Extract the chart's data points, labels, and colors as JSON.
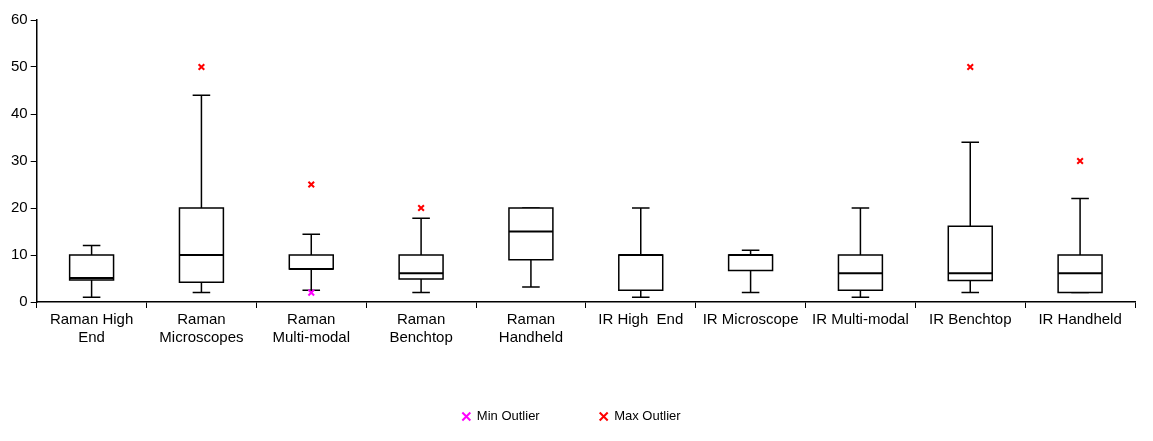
{
  "chart_data": {
    "type": "box",
    "categories": [
      "Raman High End",
      "Raman Microscopes",
      "Raman Multi-modal",
      "Raman Benchtop",
      "Raman Handheld",
      "IR High  End",
      "IR Microscope",
      "IR Multi-modal",
      "IR Benchtop",
      "IR Handheld"
    ],
    "boxes": [
      {
        "low": 1,
        "q1": 4.7,
        "median": 5.1,
        "q3": 10,
        "high": 12
      },
      {
        "low": 2,
        "q1": 4.2,
        "median": 10,
        "q3": 20,
        "high": 44
      },
      {
        "low": 2.5,
        "q1": 7,
        "median": 7,
        "q3": 10,
        "high": 14.4
      },
      {
        "low": 2,
        "q1": 4.9,
        "median": 6.1,
        "q3": 10,
        "high": 17.8
      },
      {
        "low": 3.2,
        "q1": 9,
        "median": 15,
        "q3": 20,
        "high": 20
      },
      {
        "low": 1,
        "q1": 2.5,
        "median": 10,
        "q3": 10,
        "high": 20
      },
      {
        "low": 2,
        "q1": 6.7,
        "median": 10,
        "q3": 10,
        "high": 11
      },
      {
        "low": 1,
        "q1": 2.5,
        "median": 6.1,
        "q3": 10,
        "high": 20
      },
      {
        "low": 2,
        "q1": 4.6,
        "median": 6.1,
        "q3": 16.1,
        "high": 34
      },
      {
        "low": 2,
        "q1": 2,
        "median": 6.1,
        "q3": 10,
        "high": 22
      }
    ],
    "series": [
      {
        "name": "Min Outlier",
        "type": "scatter",
        "color": "#ff00ff",
        "x": [
          "Raman Multi-modal"
        ],
        "values": [
          2
        ]
      },
      {
        "name": "Max Outlier",
        "type": "scatter",
        "color": "#ff0000",
        "x": [
          "Raman Microscopes",
          "Raman Multi-modal",
          "Raman Benchtop",
          "IR Benchtop",
          "IR Handheld"
        ],
        "values": [
          50,
          25,
          20,
          50,
          30
        ]
      }
    ],
    "marker": "cross",
    "ylim": [
      0,
      60
    ],
    "yticks": [
      0,
      10,
      20,
      30,
      40,
      50,
      60
    ],
    "grid": false,
    "legend": "bottom"
  }
}
